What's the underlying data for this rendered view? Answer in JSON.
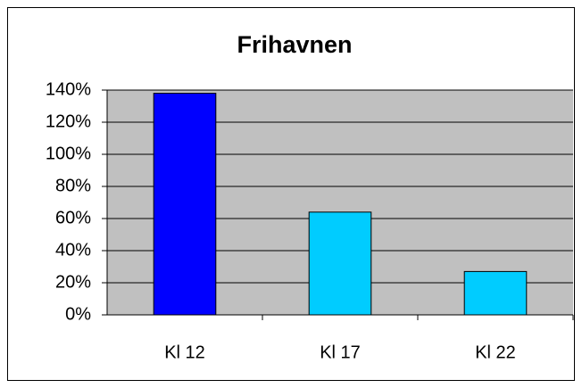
{
  "chart_data": {
    "type": "bar",
    "title": "Frihavnen",
    "categories": [
      "Kl 12",
      "Kl 17",
      "Kl 22"
    ],
    "values": [
      138,
      64,
      27
    ],
    "colors": [
      "#0000ff",
      "#00ccff",
      "#00ccff"
    ],
    "ylim": [
      0,
      140
    ],
    "yticks": [
      {
        "value": 0,
        "label": "0%"
      },
      {
        "value": 20,
        "label": "20%"
      },
      {
        "value": 40,
        "label": "40%"
      },
      {
        "value": 60,
        "label": "60%"
      },
      {
        "value": 80,
        "label": "80%"
      },
      {
        "value": 100,
        "label": "100%"
      },
      {
        "value": 120,
        "label": "120%"
      },
      {
        "value": 140,
        "label": "140%"
      }
    ],
    "grid": true
  }
}
